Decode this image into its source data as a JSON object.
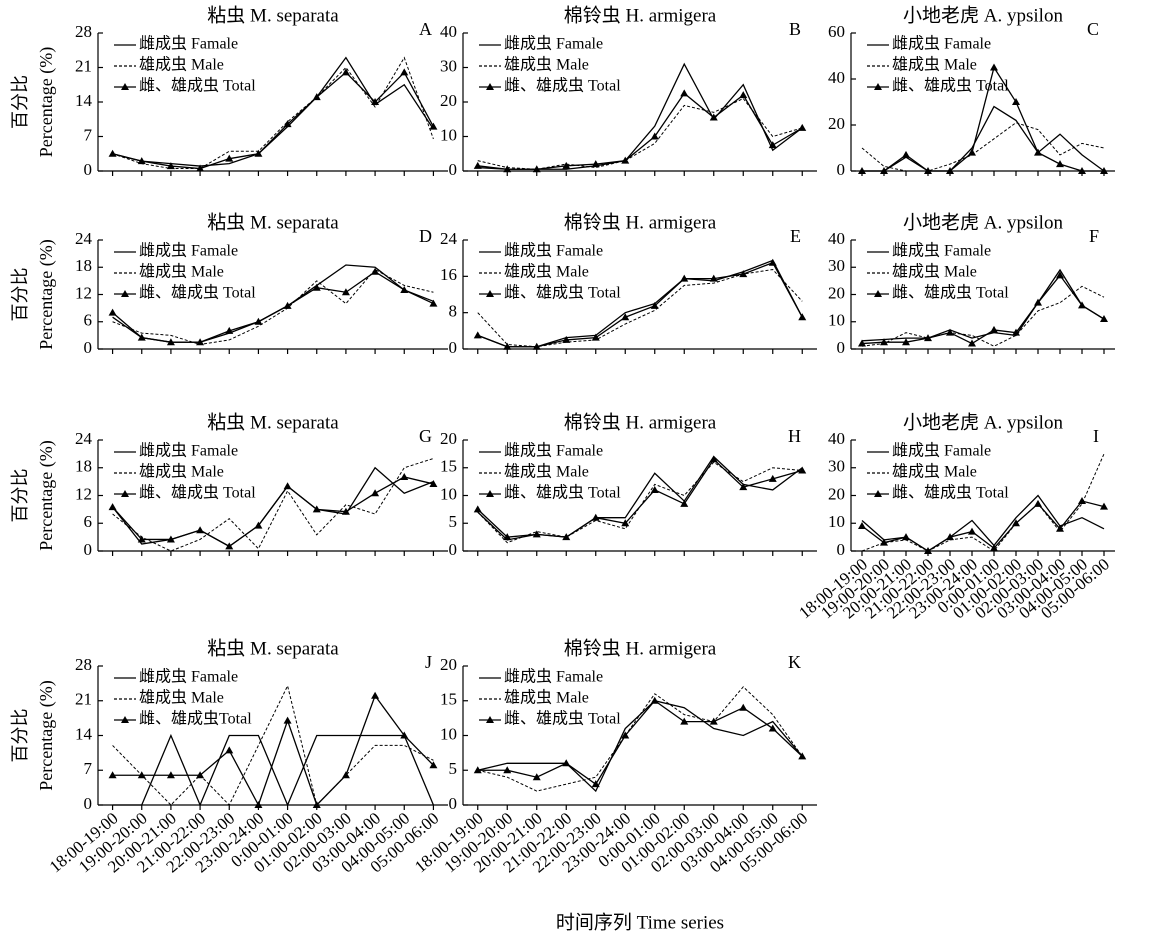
{
  "categories": [
    "18:00-19:00",
    "19:00-20:00",
    "20:00-21:00",
    "21:00-22:00",
    "22:00-23:00",
    "23:00-24:00",
    "0:00-01:00",
    "01:00-02:00",
    "02:00-03:00",
    "03:00-04:00",
    "04:00-05:00",
    "05:00-06:00"
  ],
  "xlabel": "时间序列 Time series",
  "chart_data": [
    {
      "type": "line",
      "title": "粘虫 M. separata",
      "panel": "A",
      "ylabel": [
        "百分比",
        "Percentage (%)"
      ],
      "ylim": [
        0,
        28
      ],
      "yticks": [
        0,
        7,
        14,
        21,
        28
      ],
      "series": [
        {
          "name": "雌成虫 Famale",
          "color": "#000000",
          "dash": false,
          "marker": false,
          "values": [
            3.5,
            2,
            1.5,
            1,
            1.5,
            3.5,
            9,
            15,
            23,
            13.5,
            17.5,
            8.5
          ]
        },
        {
          "name": "雄成虫 Male",
          "color": "#000000",
          "dash": true,
          "marker": false,
          "values": [
            3.5,
            1.5,
            0.5,
            0.5,
            4,
            4,
            10,
            15,
            21,
            13,
            23,
            6.5
          ]
        },
        {
          "name": "雌、雄成虫 Total",
          "color": "#000000",
          "dash": false,
          "marker": true,
          "values": [
            3.5,
            2,
            1,
            0.5,
            2.5,
            3.5,
            9.5,
            15,
            20,
            14,
            20,
            9
          ]
        }
      ]
    },
    {
      "type": "line",
      "title": "棉铃虫 H. armigera",
      "panel": "B",
      "ylim": [
        0,
        40
      ],
      "yticks": [
        0,
        10,
        20,
        30,
        40
      ],
      "series": [
        {
          "name": "雌成虫 Famale",
          "color": "#000000",
          "dash": false,
          "marker": false,
          "values": [
            1,
            0.5,
            0.5,
            0.5,
            1.5,
            3,
            13,
            31,
            15,
            25,
            6,
            12.5
          ]
        },
        {
          "name": "雄成虫 Male",
          "color": "#000000",
          "dash": true,
          "marker": false,
          "values": [
            3,
            1,
            0.5,
            2,
            1,
            3,
            8,
            19,
            17,
            21,
            10,
            12.5
          ]
        },
        {
          "name": "雌、雄成虫 Total",
          "color": "#000000",
          "dash": false,
          "marker": true,
          "values": [
            1.5,
            0.5,
            0.5,
            1.5,
            2,
            3,
            10,
            22.5,
            15.5,
            22,
            7.5,
            12.5
          ]
        }
      ]
    },
    {
      "type": "line",
      "title": "小地老虎 A. ypsilon",
      "panel": "C",
      "ylim": [
        0,
        60
      ],
      "yticks": [
        0,
        20,
        40,
        60
      ],
      "series": [
        {
          "name": "雌成虫 Famale",
          "color": "#000000",
          "dash": false,
          "marker": false,
          "values": [
            0,
            0,
            6,
            0,
            0,
            10,
            28,
            22,
            8,
            16,
            7,
            0
          ]
        },
        {
          "name": "雄成虫 Male",
          "color": "#000000",
          "dash": true,
          "marker": false,
          "values": [
            10,
            2,
            0,
            0,
            3,
            7,
            14,
            21,
            18,
            7,
            12,
            10
          ]
        },
        {
          "name": "雌、雄成虫 Total",
          "color": "#000000",
          "dash": false,
          "marker": true,
          "values": [
            0,
            0,
            7,
            0,
            0,
            8,
            45,
            30,
            8,
            3,
            0,
            0
          ]
        }
      ]
    },
    {
      "type": "line",
      "title": "粘虫 M. separata",
      "panel": "D",
      "ylabel": [
        "百分比",
        "Percentage (%)"
      ],
      "ylim": [
        0,
        24
      ],
      "yticks": [
        0,
        6,
        12,
        18,
        24
      ],
      "series": [
        {
          "name": "雌成虫 Famale",
          "color": "#000000",
          "dash": false,
          "marker": false,
          "values": [
            7,
            2.5,
            1.5,
            1.5,
            3.5,
            6,
            9.5,
            14,
            18.5,
            18,
            13,
            10.5
          ]
        },
        {
          "name": "雄成虫 Male",
          "color": "#000000",
          "dash": true,
          "marker": false,
          "values": [
            6,
            3.5,
            3,
            1,
            2,
            5,
            9,
            15,
            10,
            17.5,
            14,
            12.5
          ]
        },
        {
          "name": "雌、雄成虫 Total",
          "color": "#000000",
          "dash": false,
          "marker": true,
          "values": [
            8,
            2.5,
            1.5,
            1.5,
            4,
            6,
            9.5,
            13.5,
            12.5,
            17,
            13,
            10
          ]
        }
      ]
    },
    {
      "type": "line",
      "title": "棉铃虫 H. armigera",
      "panel": "E",
      "ylim": [
        0,
        24
      ],
      "yticks": [
        0,
        8,
        16,
        24
      ],
      "series": [
        {
          "name": "雌成虫 Famale",
          "color": "#000000",
          "dash": false,
          "marker": false,
          "values": [
            3,
            0.5,
            0.5,
            2.5,
            3,
            8,
            10,
            15.5,
            15,
            17,
            19.5,
            7
          ]
        },
        {
          "name": "雄成虫 Male",
          "color": "#000000",
          "dash": true,
          "marker": false,
          "values": [
            8,
            1,
            0.5,
            1.5,
            2,
            5.5,
            8.5,
            14,
            14.5,
            16.5,
            17.5,
            10.5
          ]
        },
        {
          "name": "雌、雄成虫 Total",
          "color": "#000000",
          "dash": false,
          "marker": true,
          "values": [
            3,
            0.5,
            0.5,
            2,
            2.5,
            7,
            9.5,
            15.5,
            15.5,
            16.5,
            19,
            7
          ]
        }
      ]
    },
    {
      "type": "line",
      "title": "小地老虎 A. ypsilon",
      "panel": "F",
      "ylim": [
        0,
        40
      ],
      "yticks": [
        0,
        10,
        20,
        30,
        40
      ],
      "series": [
        {
          "name": "雌成虫 Famale",
          "color": "#000000",
          "dash": false,
          "marker": false,
          "values": [
            3,
            3.5,
            4,
            4,
            7,
            4,
            6,
            5,
            17,
            29,
            16,
            11
          ]
        },
        {
          "name": "雄成虫 Male",
          "color": "#000000",
          "dash": true,
          "marker": false,
          "values": [
            1,
            2,
            6,
            4,
            6,
            5,
            1,
            5,
            14,
            17,
            23,
            19
          ]
        },
        {
          "name": "雌、雄成虫 Total",
          "color": "#000000",
          "dash": false,
          "marker": true,
          "values": [
            2,
            2.5,
            2.5,
            4,
            6,
            2,
            7,
            6,
            17,
            27,
            16,
            11
          ]
        }
      ]
    },
    {
      "type": "line",
      "title": "粘虫 M. separata",
      "panel": "G",
      "ylabel": [
        "百分比",
        "Percentage (%)"
      ],
      "ylim": [
        0,
        24
      ],
      "yticks": [
        0,
        6,
        12,
        18,
        24
      ],
      "series": [
        {
          "name": "雌成虫 Famale",
          "color": "#000000",
          "dash": false,
          "marker": false,
          "values": [
            9.5,
            1.5,
            2.5,
            4.5,
            1,
            5.5,
            14,
            9,
            8,
            18,
            12.5,
            15
          ]
        },
        {
          "name": "雄成虫 Male",
          "color": "#000000",
          "dash": true,
          "marker": false,
          "values": [
            8,
            3,
            0,
            2.5,
            7,
            0.5,
            13,
            3.5,
            10,
            8,
            18,
            20
          ]
        },
        {
          "name": "雌、雄成虫 Total",
          "color": "#000000",
          "dash": false,
          "marker": true,
          "values": [
            9.5,
            2.5,
            2.5,
            4.5,
            1,
            5.5,
            14,
            9,
            8.5,
            12.5,
            16,
            14.5
          ]
        }
      ]
    },
    {
      "type": "line",
      "title": "棉铃虫 H. armigera",
      "panel": "H",
      "ylim": [
        0,
        20
      ],
      "yticks": [
        0,
        5,
        10,
        15,
        20
      ],
      "series": [
        {
          "name": "雌成虫 Famale",
          "color": "#000000",
          "dash": false,
          "marker": false,
          "values": [
            7,
            2,
            3,
            2.5,
            6,
            6,
            14,
            9,
            17,
            12,
            11,
            15
          ]
        },
        {
          "name": "雄成虫 Male",
          "color": "#000000",
          "dash": true,
          "marker": false,
          "values": [
            7,
            1.5,
            3.5,
            2.5,
            5.5,
            4,
            12,
            10,
            16,
            12.5,
            15,
            14.5
          ]
        },
        {
          "name": "雌、雄成虫 Total",
          "color": "#000000",
          "dash": false,
          "marker": true,
          "values": [
            7.5,
            2.5,
            3,
            2.5,
            6,
            5,
            11,
            8.5,
            16.5,
            11.5,
            13,
            14.5
          ]
        }
      ]
    },
    {
      "type": "line",
      "title": "小地老虎 A. ypsilon",
      "panel": "I",
      "ylim": [
        0,
        40
      ],
      "yticks": [
        0,
        10,
        20,
        30,
        40
      ],
      "series": [
        {
          "name": "雌成虫 Famale",
          "color": "#000000",
          "dash": false,
          "marker": false,
          "values": [
            11,
            4,
            5,
            0,
            5,
            11,
            2,
            12,
            20,
            9,
            12,
            8
          ]
        },
        {
          "name": "雄成虫 Male",
          "color": "#000000",
          "dash": true,
          "marker": false,
          "values": [
            0,
            3,
            4,
            0,
            4,
            5,
            0,
            10,
            17,
            7,
            17,
            35
          ]
        },
        {
          "name": "雌、雄成虫 Total",
          "color": "#000000",
          "dash": false,
          "marker": true,
          "values": [
            9,
            3,
            5,
            0,
            5,
            7,
            1,
            10,
            17,
            8,
            18,
            16
          ]
        }
      ]
    },
    {
      "type": "line",
      "title": "粘虫 M. separata",
      "panel": "J",
      "ylabel": [
        "百分比",
        "Percentage (%)"
      ],
      "ylim": [
        0,
        28
      ],
      "yticks": [
        0,
        7,
        14,
        21,
        28
      ],
      "series": [
        {
          "name": "雌成虫 Famale",
          "color": "#000000",
          "dash": false,
          "marker": false,
          "values": [
            0,
            0,
            14,
            0,
            14,
            14,
            0,
            14,
            14,
            14,
            14,
            0
          ]
        },
        {
          "name": "雄成虫 Male",
          "color": "#000000",
          "dash": true,
          "marker": false,
          "values": [
            12,
            6,
            0,
            6,
            0,
            12,
            24,
            0,
            6,
            12,
            12,
            9
          ]
        },
        {
          "name": "雌、雄成虫Total",
          "color": "#000000",
          "dash": false,
          "marker": true,
          "values": [
            6,
            6,
            6,
            6,
            11,
            0,
            17,
            0,
            6,
            22,
            14,
            8
          ]
        }
      ]
    },
    {
      "type": "line",
      "title": "棉铃虫 H. armigera",
      "panel": "K",
      "ylim": [
        0,
        20
      ],
      "yticks": [
        0,
        5,
        10,
        15,
        20
      ],
      "series": [
        {
          "name": "雌成虫 Famale",
          "color": "#000000",
          "dash": false,
          "marker": false,
          "values": [
            5,
            6,
            6,
            6,
            2,
            11,
            15,
            14,
            11,
            10,
            12,
            7
          ]
        },
        {
          "name": "雄成虫 Male",
          "color": "#000000",
          "dash": true,
          "marker": false,
          "values": [
            5,
            4,
            2,
            3,
            4,
            10,
            16,
            13,
            12,
            17,
            13,
            7
          ]
        },
        {
          "name": "雌、雄成虫 Total",
          "color": "#000000",
          "dash": false,
          "marker": true,
          "values": [
            5,
            5,
            4,
            6,
            3,
            10,
            15,
            12,
            12,
            14,
            11,
            7
          ]
        }
      ]
    }
  ]
}
